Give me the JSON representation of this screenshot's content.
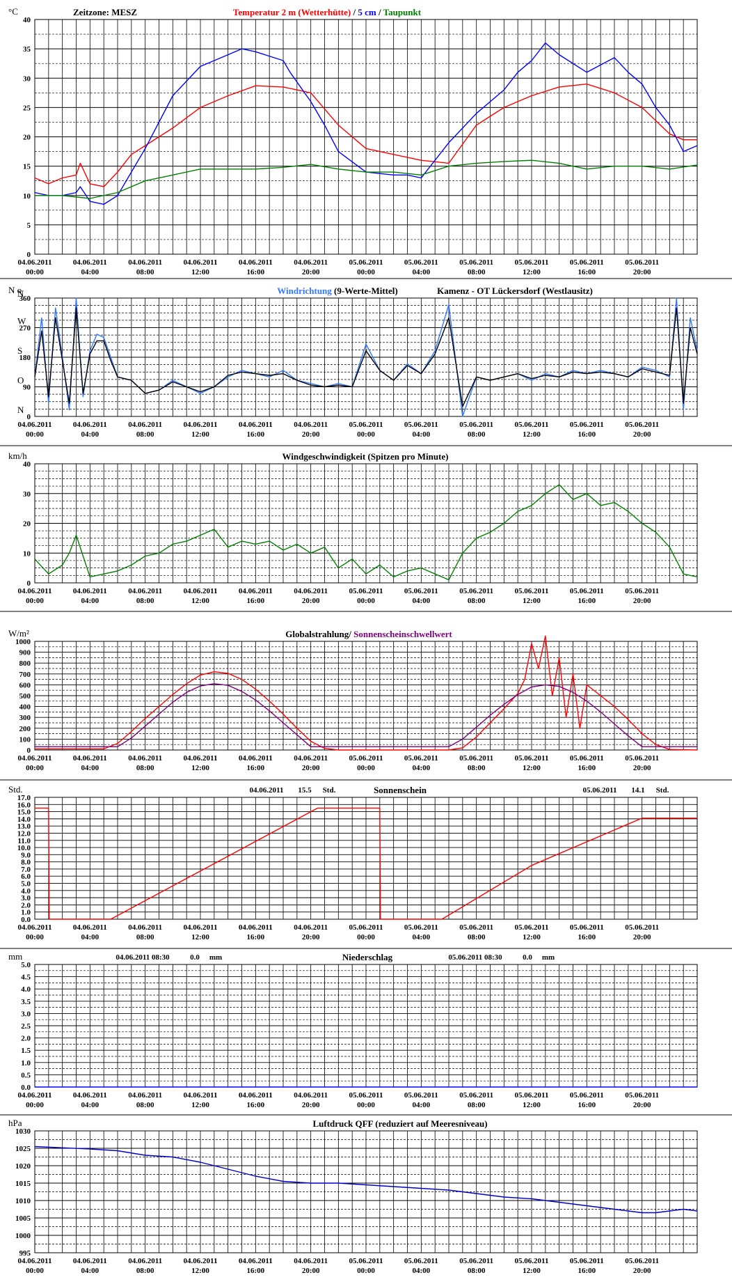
{
  "x_tick_labels": [
    [
      "04.06.2011",
      "00:00"
    ],
    [
      "04.06.2011",
      "04:00"
    ],
    [
      "04.06.2011",
      "08:00"
    ],
    [
      "04.06.2011",
      "12:00"
    ],
    [
      "04.06.2011",
      "16:00"
    ],
    [
      "04.06.2011",
      "20:00"
    ],
    [
      "05.06.2011",
      "00:00"
    ],
    [
      "05.06.2011",
      "04:00"
    ],
    [
      "05.06.2011",
      "08:00"
    ],
    [
      "05.06.2011",
      "12:00"
    ],
    [
      "05.06.2011",
      "16:00"
    ],
    [
      "05.06.2011",
      "20:00"
    ]
  ],
  "chart_data": [
    {
      "id": "temperature",
      "type": "line",
      "unit": "°C",
      "extra_label": "Zeitzone: MESZ",
      "title_parts": [
        {
          "text": "Temperatur 2 m (Wetterhütte)",
          "color": "#ff0000"
        },
        {
          "text": " / ",
          "color": "#000000"
        },
        {
          "text": "5 cm",
          "color": "#0000ff"
        },
        {
          "text": " / ",
          "color": "#000000"
        },
        {
          "text": "Taupunkt",
          "color": "#008000"
        }
      ],
      "ylim": [
        0,
        40
      ],
      "yticks": [
        "0",
        "5",
        "10",
        "15",
        "20",
        "25",
        "30",
        "35",
        "40"
      ],
      "x_range_hours": [
        0,
        48
      ],
      "series": [
        {
          "name": "Temperatur 2 m (Wetterhütte)",
          "color": "#ff0000",
          "x": [
            0,
            1,
            2,
            3,
            3.3,
            4,
            5,
            6,
            7,
            8,
            10,
            12,
            14,
            16,
            18,
            20,
            22,
            24,
            26,
            28,
            30,
            32,
            34,
            36,
            38,
            40,
            42,
            44,
            46,
            47,
            48
          ],
          "y": [
            13,
            12,
            13,
            13.5,
            15.5,
            12,
            11.5,
            14,
            17,
            18.5,
            21.5,
            25,
            27,
            28.7,
            28.5,
            27.5,
            22,
            18,
            17,
            16,
            15.5,
            22,
            25,
            27,
            28.5,
            29,
            27.5,
            25,
            20.5,
            19.5,
            19.5
          ]
        },
        {
          "name": "5 cm",
          "color": "#0000ff",
          "x": [
            0,
            1,
            2,
            3,
            3.3,
            4,
            5,
            6,
            7,
            8,
            10,
            12,
            14,
            15,
            16,
            18,
            18.5,
            20,
            21,
            22,
            24,
            26,
            27,
            28,
            30,
            32,
            34,
            35,
            36,
            37,
            38,
            40,
            42,
            43,
            44,
            45,
            46,
            47,
            48
          ],
          "y": [
            10.5,
            10,
            10,
            10.5,
            11.5,
            9,
            8.5,
            10,
            14,
            18,
            27,
            32,
            34,
            35,
            34.5,
            33,
            31,
            26,
            22,
            17.5,
            14,
            13.5,
            13.5,
            13,
            19,
            24,
            28,
            31,
            33,
            36,
            34,
            31,
            33.5,
            31,
            29,
            25,
            22,
            17.5,
            18.5
          ]
        },
        {
          "name": "Taupunkt",
          "color": "#008000",
          "x": [
            0,
            2,
            4,
            6,
            8,
            10,
            12,
            14,
            16,
            18,
            20,
            22,
            24,
            26,
            28,
            30,
            32,
            34,
            36,
            38,
            40,
            42,
            44,
            46,
            48
          ],
          "y": [
            10,
            10,
            9.5,
            10.5,
            12.5,
            13.5,
            14.5,
            14.5,
            14.5,
            14.8,
            15.3,
            14.5,
            14,
            14,
            13.5,
            15,
            15.5,
            15.8,
            16,
            15.5,
            14.5,
            15,
            15,
            14.5,
            15.2
          ]
        }
      ]
    },
    {
      "id": "wind_direction",
      "type": "line",
      "unit": "N o",
      "extra_label": "Kamenz - OT Lückersdorf (Westlausitz)",
      "title_parts": [
        {
          "text": "Windrichtung",
          "color": "#3377ff"
        },
        {
          "text": " (9-Werte-Mittel)",
          "color": "#000000"
        }
      ],
      "ylim": [
        0,
        360
      ],
      "yticks": [
        "0",
        "90",
        "180",
        "270",
        "360"
      ],
      "compass_labels": [
        {
          "letter": "N",
          "value": 0
        },
        {
          "letter": "O",
          "value": 90
        },
        {
          "letter": "S",
          "value": 180
        },
        {
          "letter": "W",
          "value": 270
        },
        {
          "letter": "N",
          "value": 360
        }
      ],
      "x_range_hours": [
        0,
        48
      ],
      "series": [
        {
          "name": "Windrichtung",
          "color": "#3377ff",
          "x": [
            0,
            0.5,
            1,
            1.5,
            2,
            2.5,
            3,
            3.5,
            4,
            4.5,
            5,
            5.5,
            6,
            7,
            8,
            9,
            10,
            11,
            12,
            13,
            14,
            15,
            16,
            17,
            18,
            19,
            20,
            21,
            22,
            23,
            24,
            25,
            26,
            27,
            28,
            29,
            30,
            31,
            32,
            33,
            34,
            35,
            36,
            37,
            38,
            39,
            40,
            41,
            42,
            43,
            44,
            45,
            46,
            46.5,
            47,
            47.5,
            48
          ],
          "y": [
            120,
            300,
            40,
            330,
            180,
            20,
            360,
            60,
            200,
            250,
            240,
            180,
            120,
            110,
            70,
            80,
            110,
            90,
            70,
            90,
            120,
            140,
            130,
            120,
            140,
            110,
            100,
            90,
            100,
            90,
            220,
            140,
            110,
            160,
            130,
            200,
            340,
            0,
            120,
            110,
            120,
            130,
            110,
            130,
            120,
            140,
            130,
            140,
            130,
            120,
            150,
            140,
            120,
            360,
            20,
            300,
            200
          ]
        },
        {
          "name": "9-Werte-Mittel",
          "color": "#000000",
          "x": [
            0,
            0.5,
            1,
            1.5,
            2,
            2.5,
            3,
            3.5,
            4,
            4.5,
            5,
            5.5,
            6,
            7,
            8,
            9,
            10,
            11,
            12,
            13,
            14,
            15,
            16,
            17,
            18,
            19,
            20,
            21,
            22,
            23,
            24,
            25,
            26,
            27,
            28,
            29,
            30,
            31,
            32,
            33,
            34,
            35,
            36,
            37,
            38,
            39,
            40,
            41,
            42,
            43,
            44,
            45,
            46,
            46.5,
            47,
            47.5,
            48
          ],
          "y": [
            120,
            260,
            60,
            300,
            170,
            40,
            330,
            70,
            190,
            230,
            230,
            170,
            120,
            110,
            70,
            80,
            105,
            90,
            75,
            90,
            125,
            135,
            130,
            125,
            130,
            110,
            95,
            90,
            95,
            90,
            200,
            140,
            110,
            155,
            130,
            190,
            300,
            30,
            120,
            110,
            120,
            130,
            115,
            125,
            120,
            135,
            130,
            135,
            130,
            120,
            145,
            135,
            125,
            330,
            40,
            270,
            190
          ]
        }
      ]
    },
    {
      "id": "wind_speed",
      "type": "line",
      "unit": "km/h",
      "title_parts": [
        {
          "text": "Windgeschwindigkeit (Spitzen pro Minute)",
          "color": "#000000"
        }
      ],
      "ylim": [
        0,
        40
      ],
      "yticks": [
        "0",
        "10",
        "20",
        "30",
        "40"
      ],
      "x_range_hours": [
        0,
        48
      ],
      "series": [
        {
          "name": "Windgeschwindigkeit",
          "color": "#008000",
          "x": [
            0,
            1,
            2,
            2.5,
            3,
            4,
            5,
            6,
            7,
            8,
            9,
            10,
            11,
            12,
            13,
            14,
            15,
            16,
            17,
            18,
            19,
            20,
            21,
            22,
            23,
            24,
            25,
            26,
            27,
            28,
            29,
            30,
            31,
            32,
            33,
            34,
            35,
            36,
            37,
            38,
            39,
            40,
            41,
            42,
            43,
            44,
            45,
            46,
            47,
            48
          ],
          "y": [
            8,
            3,
            6,
            10,
            16,
            2,
            3,
            4,
            6,
            9,
            10,
            13,
            14,
            16,
            18,
            12,
            14,
            13,
            14,
            11,
            13,
            10,
            12,
            5,
            8,
            3,
            6,
            2,
            4,
            5,
            3,
            1,
            10,
            15,
            17,
            20,
            24,
            26,
            30,
            33,
            28,
            30,
            26,
            27,
            24,
            20,
            17,
            12,
            3,
            2
          ]
        }
      ]
    },
    {
      "id": "global_radiation",
      "type": "line",
      "unit": "W/m²",
      "title_parts": [
        {
          "text": "Globalstrahlung/ ",
          "color": "#000000"
        },
        {
          "text": "Sonnenscheinschwellwert",
          "color": "#800080"
        }
      ],
      "ylim": [
        0,
        1000
      ],
      "yticks": [
        "0",
        "100",
        "200",
        "300",
        "400",
        "500",
        "600",
        "700",
        "800",
        "900",
        "1000"
      ],
      "x_range_hours": [
        0,
        48
      ],
      "series": [
        {
          "name": "Globalstrahlung",
          "color": "#ff0000",
          "x": [
            0,
            5,
            6,
            7,
            8,
            9,
            10,
            11,
            12,
            13,
            14,
            15,
            16,
            17,
            18,
            19,
            20,
            21,
            22,
            30,
            31,
            32,
            33,
            34,
            35,
            35.5,
            36,
            36.5,
            37,
            37.5,
            38,
            38.5,
            39,
            39.5,
            40,
            41,
            42,
            43,
            44,
            45,
            46,
            48
          ],
          "y": [
            10,
            10,
            60,
            170,
            290,
            400,
            510,
            610,
            690,
            720,
            705,
            650,
            560,
            450,
            330,
            200,
            80,
            15,
            0,
            0,
            20,
            120,
            250,
            380,
            520,
            650,
            980,
            750,
            1050,
            500,
            850,
            300,
            700,
            200,
            600,
            500,
            400,
            280,
            150,
            50,
            5,
            0
          ]
        },
        {
          "name": "Sonnenscheinschwellwert",
          "color": "#800080",
          "x": [
            0,
            5,
            6,
            7,
            8,
            9,
            10,
            11,
            12,
            13,
            14,
            15,
            16,
            17,
            18,
            19,
            20,
            20.5,
            29.5,
            30,
            31,
            32,
            33,
            34,
            35,
            36,
            37,
            38,
            39,
            40,
            41,
            42,
            43,
            44,
            45,
            46,
            48
          ],
          "y": [
            30,
            30,
            30,
            110,
            220,
            330,
            440,
            530,
            590,
            610,
            595,
            540,
            460,
            360,
            250,
            140,
            30,
            30,
            30,
            30,
            100,
            210,
            320,
            420,
            510,
            580,
            600,
            585,
            530,
            450,
            350,
            240,
            130,
            30,
            30,
            30,
            30
          ]
        }
      ]
    },
    {
      "id": "sunshine",
      "type": "line",
      "unit": "Std.",
      "title_parts": [
        {
          "text": "Sonnenschein",
          "color": "#000000"
        }
      ],
      "annotations": [
        {
          "date": "04.06.2011",
          "value": "15.5",
          "unit": "Std."
        },
        {
          "date": "05.06.2011",
          "value": "14.1",
          "unit": "Std."
        }
      ],
      "ylim": [
        0,
        17
      ],
      "yticks": [
        "0.0",
        "1.0",
        "2.0",
        "3.0",
        "4.0",
        "5.0",
        "6.0",
        "7.0",
        "8.0",
        "9.0",
        "10.0",
        "11.0",
        "12.0",
        "13.0",
        "14.0",
        "15.0",
        "16.0",
        "17.0"
      ],
      "x_range_hours": [
        0,
        48
      ],
      "series": [
        {
          "name": "Sonnenschein",
          "color": "#ff0000",
          "x": [
            0,
            1,
            1.05,
            5.5,
            20.5,
            25,
            25.05,
            29.5,
            36,
            44,
            48
          ],
          "y": [
            15.5,
            15.5,
            0,
            0,
            15.5,
            15.5,
            0,
            0,
            7.5,
            14.1,
            14.1
          ]
        }
      ]
    },
    {
      "id": "precipitation",
      "type": "line",
      "unit": "mm",
      "title_parts": [
        {
          "text": "Niederschlag",
          "color": "#000000"
        }
      ],
      "annotations": [
        {
          "date": "04.06.2011 08:30",
          "value": "0.0",
          "unit": "mm"
        },
        {
          "date": "05.06.2011 08:30",
          "value": "0.0",
          "unit": "mm"
        }
      ],
      "ylim": [
        0,
        5
      ],
      "yticks": [
        "0.0",
        "0.5",
        "1.0",
        "1.5",
        "2.0",
        "2.5",
        "3.0",
        "3.5",
        "4.0",
        "4.5",
        "5.0"
      ],
      "x_range_hours": [
        0,
        48
      ],
      "series": [
        {
          "name": "Niederschlag",
          "color": "#0000ff",
          "x": [
            0,
            48
          ],
          "y": [
            0,
            0
          ]
        }
      ]
    },
    {
      "id": "pressure",
      "type": "line",
      "unit": "hPa",
      "title_parts": [
        {
          "text": "Luftdruck QFF (reduziert auf Meeresniveau)",
          "color": "#000000"
        }
      ],
      "ylim": [
        995,
        1030
      ],
      "yticks": [
        "995",
        "1000",
        "1005",
        "1010",
        "1015",
        "1020",
        "1025",
        "1030"
      ],
      "x_range_hours": [
        0,
        48
      ],
      "series": [
        {
          "name": "Luftdruck QFF",
          "color": "#0000cc",
          "x": [
            0,
            4,
            6,
            8,
            10,
            12,
            14,
            16,
            18,
            20,
            22,
            24,
            26,
            28,
            30,
            32,
            34,
            36,
            38,
            40,
            42,
            44,
            45,
            46,
            47,
            48
          ],
          "y": [
            1025.5,
            1024.8,
            1024.3,
            1023,
            1022.5,
            1021,
            1019,
            1017,
            1015.5,
            1015,
            1015,
            1014.5,
            1014,
            1013.5,
            1013,
            1012,
            1011,
            1010.5,
            1009.5,
            1008.5,
            1007.5,
            1006.5,
            1006.5,
            1007,
            1007.5,
            1007
          ]
        }
      ]
    }
  ]
}
